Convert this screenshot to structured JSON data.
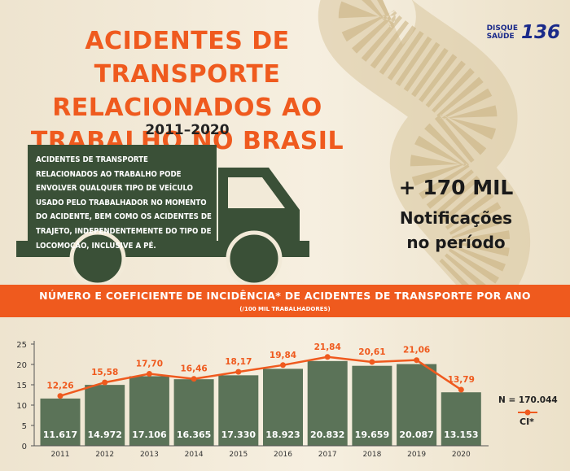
{
  "header": {
    "title_lines": [
      "ACIDENTES DE TRANSPORTE",
      "RELACIONADOS AO",
      "TRABALHO NO BRASIL"
    ],
    "years": "2011–2020"
  },
  "logo": {
    "line1": "DISQUE",
    "line2": "SAÚDE",
    "number": "136"
  },
  "description": "ACIDENTES DE TRANSPORTE RELACIONADOS AO TRABALHO PODE ENVOLVER QUALQUER TIPO DE VEÍCULO USADO PELO TRABALHADOR NO MOMENTO DO ACIDENTE, BEM COMO OS ACIDENTES DE TRAJETO, INDEPENDENTEMENTE DO TIPO DE LOCOMOÇÃO, INCLUSIVE A PÉ.",
  "highlight": {
    "line1": "+ 170 MIL",
    "line2": "Notificações",
    "line3": "no período"
  },
  "colors": {
    "accent": "#ef5a1e",
    "bar": "#5b7358",
    "truck": "#3a5037",
    "line": "#ef5a1e"
  },
  "chart_data": {
    "type": "bar",
    "title": "NÚMERO E COEFICIENTE DE INCIDÊNCIA* DE ACIDENTES DE TRANSPORTE POR ANO",
    "subtitle": "(/100 MIL TRABALHADORES)",
    "categories": [
      "2011",
      "2012",
      "2013",
      "2014",
      "2015",
      "2016",
      "2017",
      "2018",
      "2019",
      "2020"
    ],
    "bar_labels": [
      "11.617",
      "14.972",
      "17.106",
      "16.365",
      "17.330",
      "18.923",
      "20.832",
      "19.659",
      "20.087",
      "13.153"
    ],
    "bar_values": [
      11617,
      14972,
      17106,
      16365,
      17330,
      18923,
      20832,
      19659,
      20087,
      13153
    ],
    "line_labels": [
      "12,26",
      "15,58",
      "17,70",
      "16,46",
      "18,17",
      "19,84",
      "21,84",
      "20,61",
      "21,06",
      "13,79"
    ],
    "line_values": [
      12.26,
      15.58,
      17.7,
      16.46,
      18.17,
      19.84,
      21.84,
      20.61,
      21.06,
      13.79
    ],
    "yticks": [
      "0",
      "5",
      "10",
      "15",
      "20",
      "25"
    ],
    "ylim": [
      0,
      25
    ],
    "annotation": "N = 170.044",
    "legend_label": "CI*"
  }
}
